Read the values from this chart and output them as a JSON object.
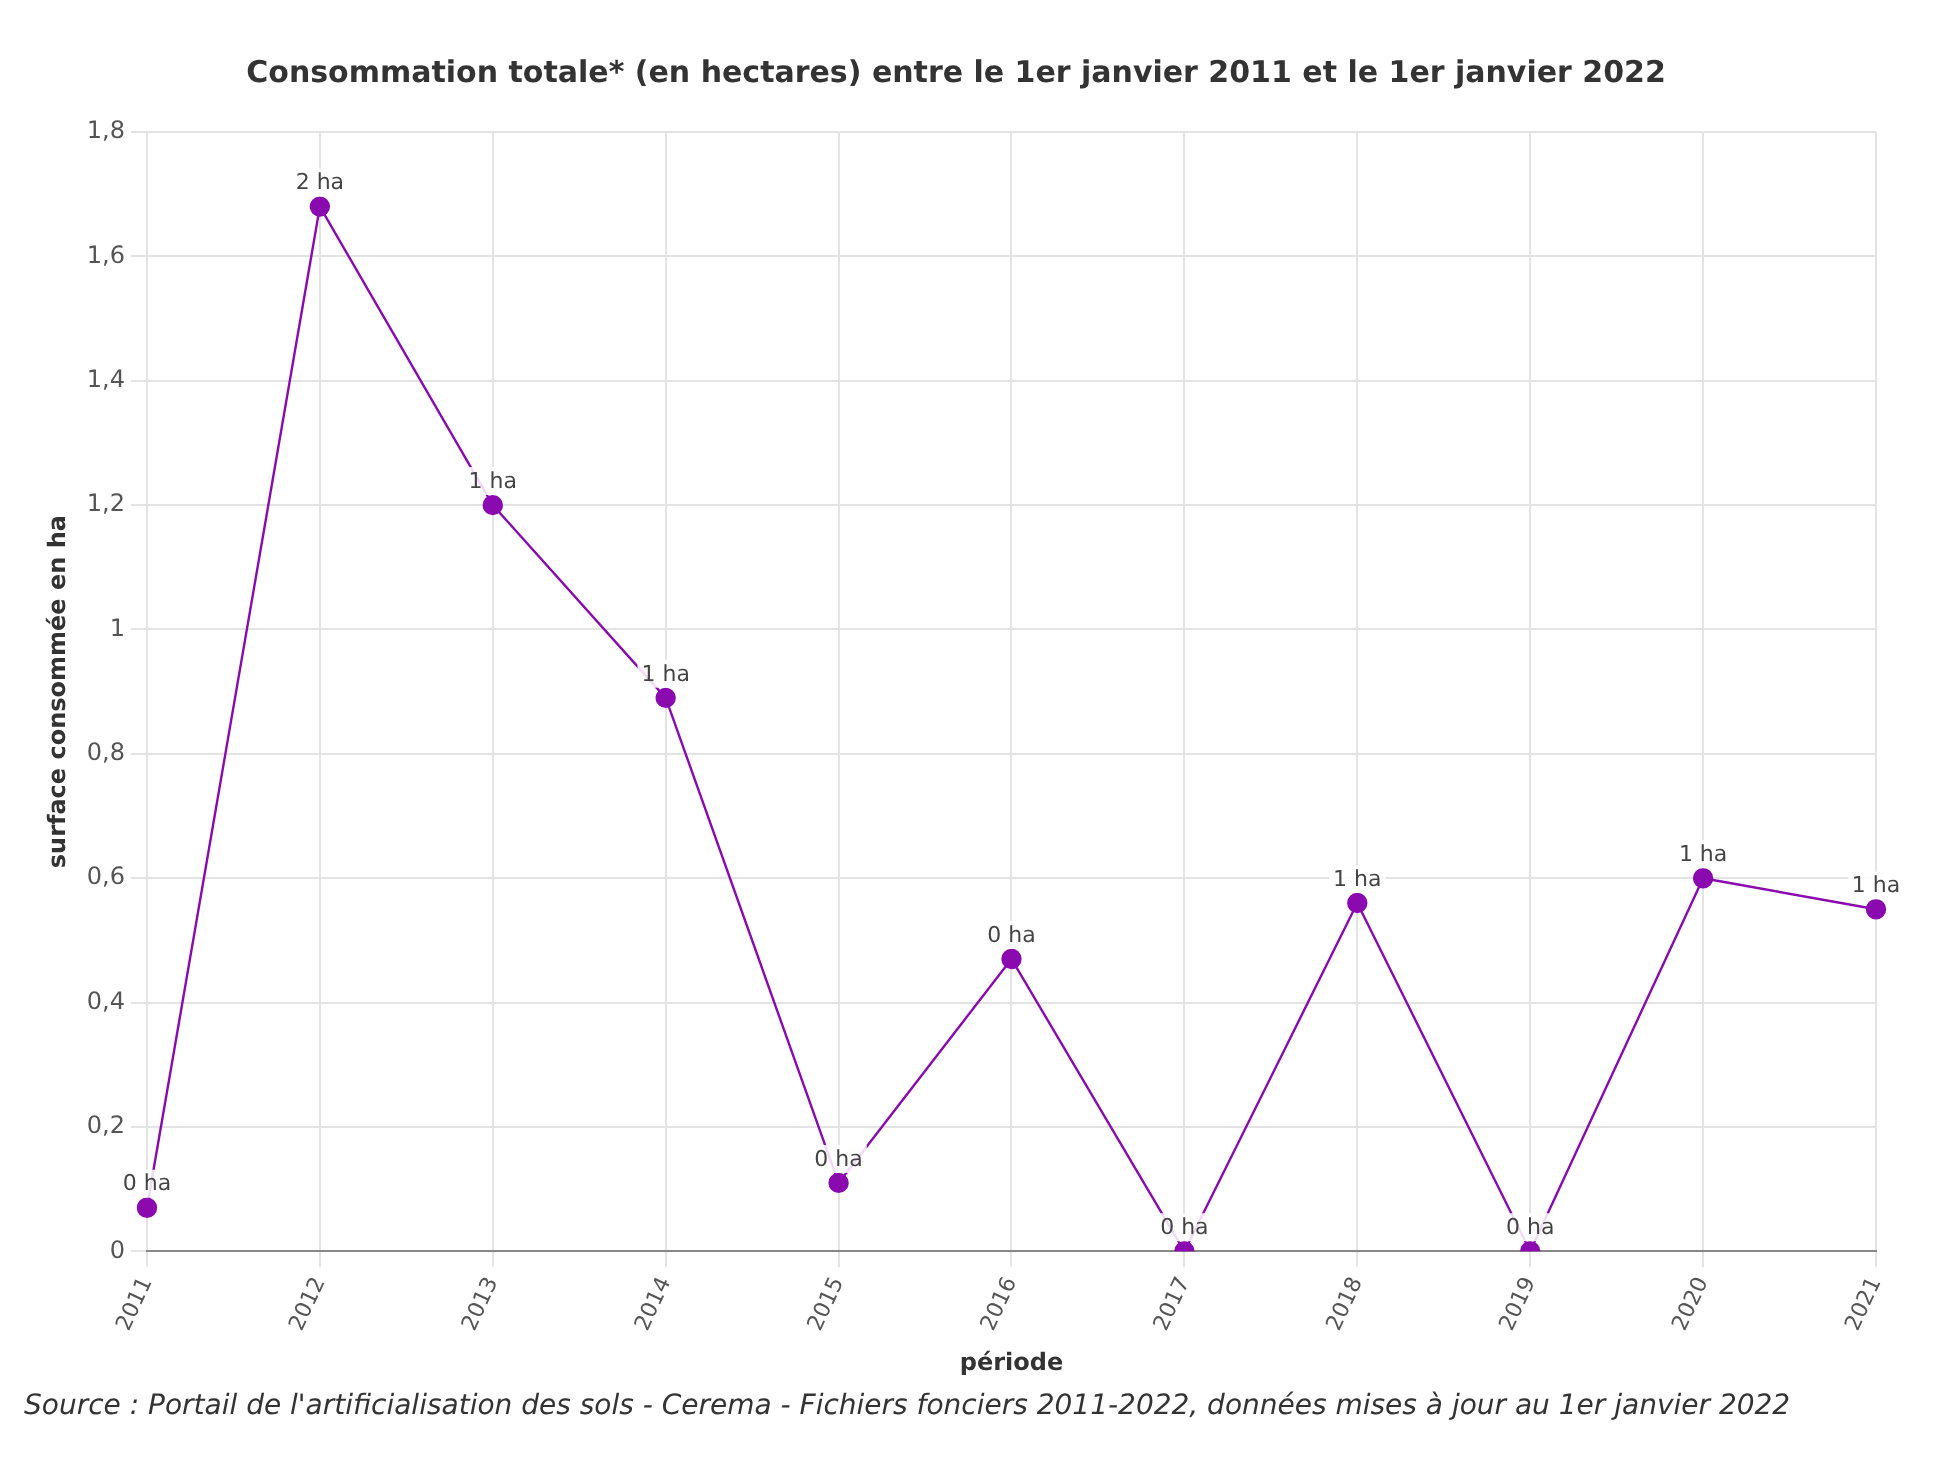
{
  "chart_data": {
    "type": "line",
    "title": "Consommation totale* (en hectares) entre le 1er janvier 2011 et le 1er janvier 2022",
    "xlabel": "période",
    "ylabel": "surface consommée en ha",
    "categories": [
      "2011",
      "2012",
      "2013",
      "2014",
      "2015",
      "2016",
      "2017",
      "2018",
      "2019",
      "2020",
      "2021"
    ],
    "series": [
      {
        "color": "#8a0ab0",
        "values": [
          0.07,
          1.68,
          1.2,
          0.89,
          0.11,
          0.47,
          0,
          0.56,
          0,
          0.6,
          0.55
        ],
        "value_labels": [
          "0 ha",
          "2 ha",
          "1 ha",
          "1 ha",
          "0 ha",
          "0 ha",
          "0 ha",
          "1 ha",
          "0 ha",
          "1 ha",
          "1 ha"
        ]
      }
    ],
    "ylim": [
      0,
      1.8
    ],
    "yticks": [
      0,
      {
        "value": 0.2,
        "label": "0,2"
      },
      {
        "value": 0.4,
        "label": "0,4"
      },
      {
        "value": 0.6,
        "label": "0,6"
      },
      {
        "value": 0.8,
        "label": "0,8"
      },
      1,
      {
        "value": 1.2,
        "label": "1,2"
      },
      {
        "value": 1.4,
        "label": "1,4"
      },
      {
        "value": 1.6,
        "label": "1,6"
      },
      {
        "value": 1.8,
        "label": "1,8"
      }
    ],
    "grid": true,
    "legend": false,
    "marker": "circle",
    "line_style": "solid",
    "annotations": [
      "Source : Portail de l'artificialisation des sols - Cerema - Fichiers fonciers 2011-2022, données mises à jour au 1er janvier 2022"
    ]
  }
}
